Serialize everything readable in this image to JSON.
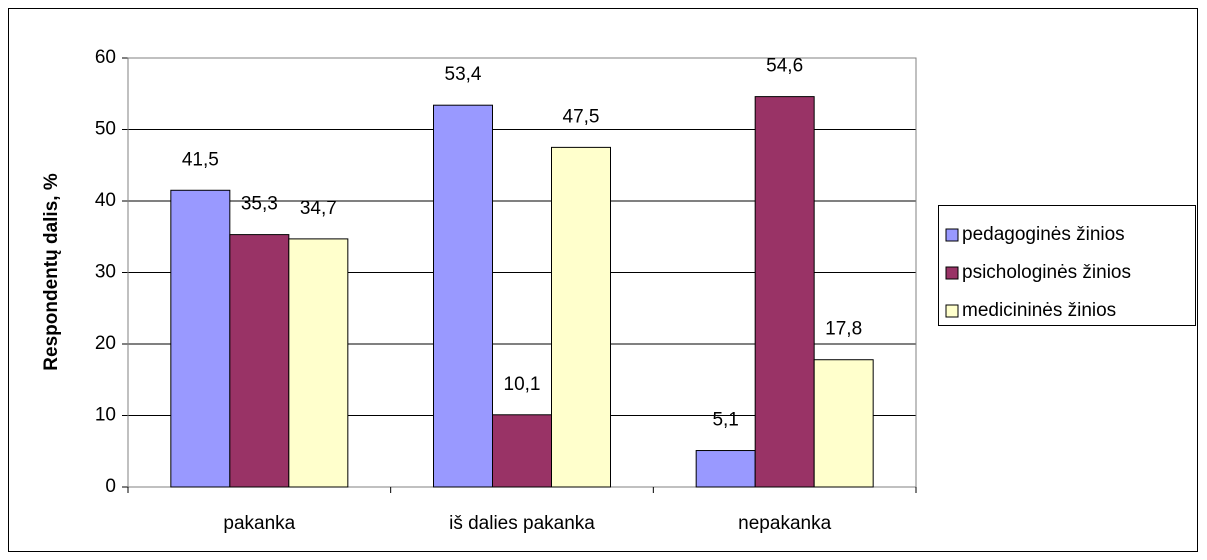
{
  "chart_data": {
    "type": "bar",
    "y_axis_label": "Respondentų dalis, %",
    "categories": [
      "pakanka",
      "iš dalies pakanka",
      "nepakanka"
    ],
    "series": [
      {
        "name": "pedagoginės žinios",
        "color": "#9999ff",
        "values": [
          41.5,
          53.4,
          5.1
        ],
        "value_labels": [
          "41,5",
          "53,4",
          "5,1"
        ]
      },
      {
        "name": "psichologinės žinios",
        "color": "#993366",
        "values": [
          35.3,
          10.1,
          54.6
        ],
        "value_labels": [
          "35,3",
          "10,1",
          "54,6"
        ]
      },
      {
        "name": "medicininės žinios",
        "color": "#ffffcc",
        "values": [
          34.7,
          47.5,
          17.8
        ],
        "value_labels": [
          "34,7",
          "47,5",
          "17,8"
        ]
      }
    ],
    "ylim": [
      0,
      60
    ],
    "yticks": [
      0,
      10,
      20,
      30,
      40,
      50,
      60
    ],
    "grid": true,
    "legend": "right"
  }
}
